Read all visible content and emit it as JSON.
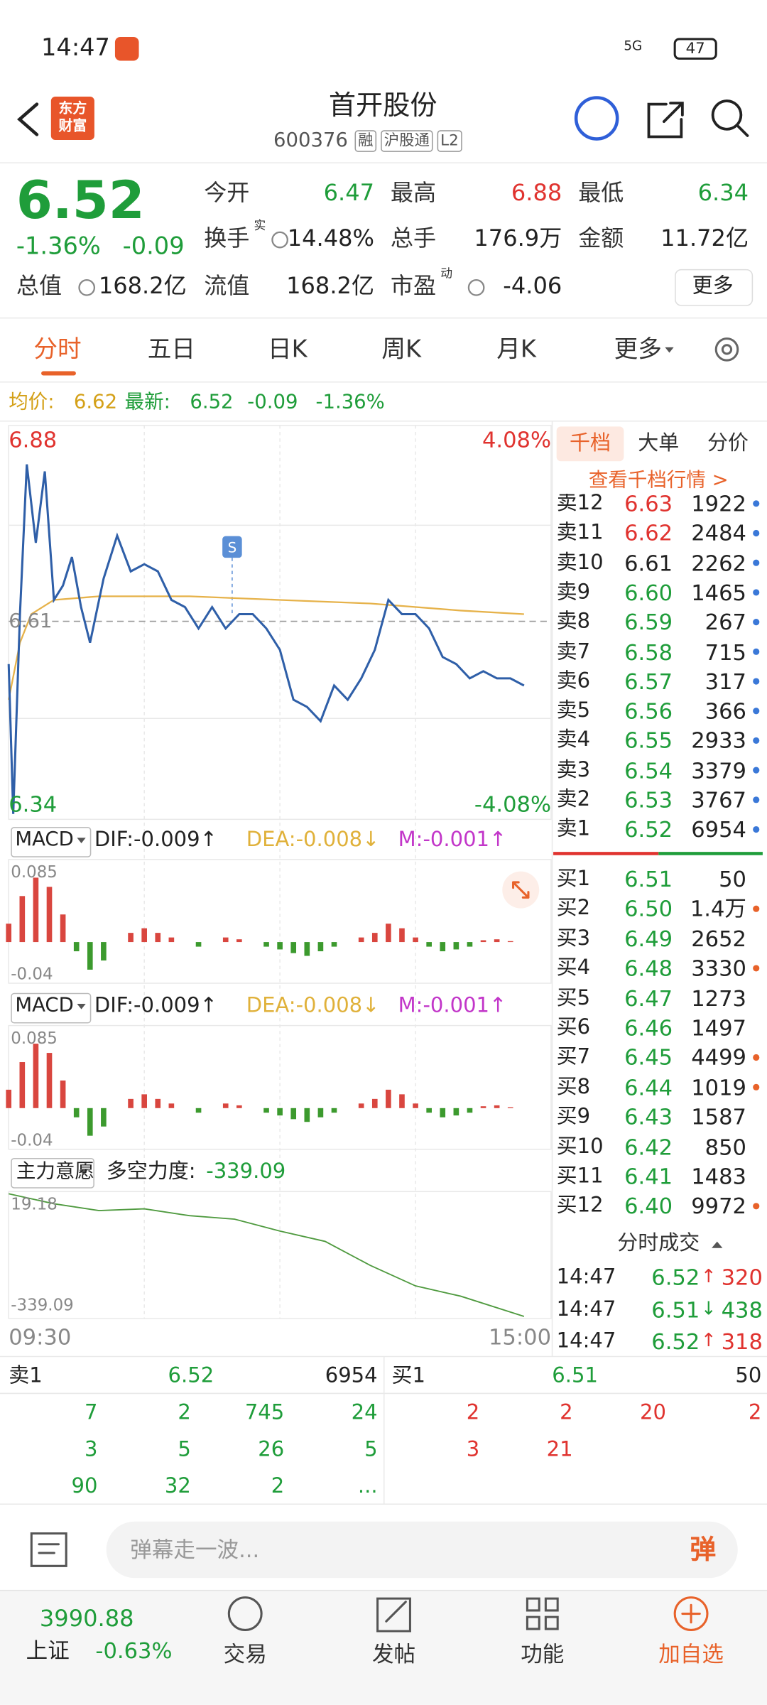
{
  "status_bar": {
    "time": "14:47",
    "network": "5G",
    "battery": "47"
  },
  "header": {
    "logo": "东方财富",
    "title": "首开股份",
    "code": "600376",
    "tags": [
      "融",
      "沪股通",
      "L2"
    ]
  },
  "quote": {
    "price": "6.52",
    "change_pct": "-1.36%",
    "change": "-0.09",
    "stats": [
      {
        "label": "今开",
        "value": "6.47",
        "color": "green"
      },
      {
        "label": "最高",
        "value": "6.88",
        "color": "red"
      },
      {
        "label": "最低",
        "value": "6.34",
        "color": "green"
      },
      {
        "label": "换手",
        "sup": "实",
        "value": "14.48%",
        "color": "black"
      },
      {
        "label": "总手",
        "value": "176.9万",
        "color": "black"
      },
      {
        "label": "金额",
        "value": "11.72亿",
        "color": "black"
      },
      {
        "label": "总值",
        "value": "168.2亿",
        "color": "black"
      },
      {
        "label": "流值",
        "value": "168.2亿",
        "color": "black"
      },
      {
        "label": "市盈",
        "sup": "动",
        "value": "-4.06",
        "color": "black"
      }
    ],
    "more": "更多"
  },
  "tabs": [
    "分时",
    "五日",
    "日K",
    "周K",
    "月K",
    "更多"
  ],
  "summary": {
    "avg_label": "均价:",
    "avg": "6.62",
    "last_label": "最新:",
    "last": "6.52",
    "change": "-0.09",
    "change_pct": "-1.36%"
  },
  "intraday": {
    "type": "line",
    "y_top_label": "6.88",
    "y_mid_label": "6.61",
    "y_bottom_label": "6.34",
    "pct_top": "4.08%",
    "pct_bottom": "-4.08%",
    "x_start": "09:30",
    "x_end": "15:00",
    "xlim": [
      0,
      240
    ],
    "ylim": [
      6.34,
      6.88
    ],
    "reference": 6.61,
    "x": [
      0,
      2,
      5,
      8,
      12,
      16,
      20,
      24,
      28,
      32,
      36,
      42,
      48,
      54,
      60,
      66,
      72,
      78,
      84,
      90,
      96,
      102,
      108,
      114,
      120,
      126,
      132,
      138,
      144,
      150,
      156,
      162,
      168,
      174,
      180,
      186,
      192,
      198,
      204,
      210,
      216,
      222,
      228
    ],
    "values": [
      6.55,
      6.34,
      6.62,
      6.83,
      6.72,
      6.82,
      6.64,
      6.66,
      6.7,
      6.63,
      6.58,
      6.67,
      6.73,
      6.68,
      6.69,
      6.68,
      6.64,
      6.63,
      6.6,
      6.63,
      6.6,
      6.62,
      6.62,
      6.6,
      6.57,
      6.5,
      6.49,
      6.47,
      6.52,
      6.5,
      6.53,
      6.57,
      6.64,
      6.62,
      6.62,
      6.6,
      6.56,
      6.55,
      6.53,
      6.54,
      6.53,
      6.53,
      6.52
    ],
    "color": "#2f5fa8",
    "avg_x": [
      0,
      5,
      10,
      20,
      40,
      80,
      120,
      160,
      200,
      228
    ],
    "avg_values": [
      6.5,
      6.58,
      6.62,
      6.64,
      6.645,
      6.645,
      6.64,
      6.635,
      6.625,
      6.62
    ],
    "avg_color": "#e6b24a"
  },
  "macd_panels": [
    {
      "name": "MACD",
      "dif": "DIF:-0.009↑",
      "dea": "DEA:-0.008↓",
      "m": "M:-0.001↑",
      "top_label": "0.085",
      "bottom_label": "-0.04"
    },
    {
      "name": "MACD",
      "dif": "DIF:-0.009↑",
      "dea": "DEA:-0.008↓",
      "m": "M:-0.001↑",
      "top_label": "0.085",
      "bottom_label": "-0.04"
    }
  ],
  "macd": {
    "type": "bar",
    "xlim": [
      0,
      240
    ],
    "ylim": [
      -0.04,
      0.085
    ],
    "x": [
      0,
      6,
      12,
      18,
      24,
      30,
      36,
      42,
      48,
      54,
      60,
      66,
      72,
      78,
      84,
      90,
      96,
      102,
      108,
      114,
      120,
      126,
      132,
      138,
      144,
      150,
      156,
      162,
      168,
      174,
      180,
      186,
      192,
      198,
      204,
      210,
      216,
      222,
      228
    ],
    "values": [
      0.02,
      0.05,
      0.07,
      0.06,
      0.03,
      -0.01,
      -0.03,
      -0.02,
      0.0,
      0.01,
      0.015,
      0.01,
      0.005,
      0.0,
      -0.005,
      0.0,
      0.005,
      0.003,
      0.0,
      -0.005,
      -0.008,
      -0.012,
      -0.015,
      -0.01,
      -0.005,
      0.0,
      0.005,
      0.01,
      0.02,
      0.015,
      0.005,
      -0.005,
      -0.01,
      -0.008,
      -0.005,
      0.002,
      0.003,
      0.001,
      0.0
    ],
    "up_color": "#d9463f",
    "down_color": "#3c9a2e"
  },
  "flow": {
    "type": "line",
    "name": "主力意愿",
    "label": "多空力度:",
    "value": "-339.09",
    "top_label": "19.18",
    "bottom_label": "-339.09",
    "xlim": [
      0,
      240
    ],
    "ylim": [
      -339.09,
      19.18
    ],
    "x": [
      0,
      20,
      40,
      60,
      80,
      100,
      120,
      140,
      160,
      180,
      200,
      228
    ],
    "values": [
      19.18,
      -10,
      -30,
      -25,
      -45,
      -55,
      -90,
      -120,
      -190,
      -250,
      -280,
      -339.09
    ],
    "color": "#4f9a3f"
  },
  "order_book": {
    "tabs": [
      "千档",
      "大单",
      "分价"
    ],
    "link": "查看千档行情 >",
    "asks": [
      {
        "label": "卖12",
        "price": "6.63",
        "volume": "1922",
        "color": "red",
        "dot": "blue"
      },
      {
        "label": "卖11",
        "price": "6.62",
        "volume": "2484",
        "color": "red",
        "dot": "blue"
      },
      {
        "label": "卖10",
        "price": "6.61",
        "volume": "2262",
        "color": "black",
        "dot": "blue"
      },
      {
        "label": "卖9",
        "price": "6.60",
        "volume": "1465",
        "color": "green",
        "dot": "blue"
      },
      {
        "label": "卖8",
        "price": "6.59",
        "volume": "267",
        "color": "green",
        "dot": "blue"
      },
      {
        "label": "卖7",
        "price": "6.58",
        "volume": "715",
        "color": "green",
        "dot": "blue"
      },
      {
        "label": "卖6",
        "price": "6.57",
        "volume": "317",
        "color": "green",
        "dot": "blue"
      },
      {
        "label": "卖5",
        "price": "6.56",
        "volume": "366",
        "color": "green",
        "dot": "blue"
      },
      {
        "label": "卖4",
        "price": "6.55",
        "volume": "2933",
        "color": "green",
        "dot": "blue"
      },
      {
        "label": "卖3",
        "price": "6.54",
        "volume": "3379",
        "color": "green",
        "dot": "blue"
      },
      {
        "label": "卖2",
        "price": "6.53",
        "volume": "3767",
        "color": "green",
        "dot": "blue"
      },
      {
        "label": "卖1",
        "price": "6.52",
        "volume": "6954",
        "color": "green",
        "dot": "blue"
      }
    ],
    "bids": [
      {
        "label": "买1",
        "price": "6.51",
        "volume": "50",
        "color": "green",
        "dot": null
      },
      {
        "label": "买2",
        "price": "6.50",
        "volume": "1.4万",
        "color": "green",
        "dot": "orange"
      },
      {
        "label": "买3",
        "price": "6.49",
        "volume": "2652",
        "color": "green",
        "dot": null
      },
      {
        "label": "买4",
        "price": "6.48",
        "volume": "3330",
        "color": "green",
        "dot": "orange"
      },
      {
        "label": "买5",
        "price": "6.47",
        "volume": "1273",
        "color": "green",
        "dot": null
      },
      {
        "label": "买6",
        "price": "6.46",
        "volume": "1497",
        "color": "green",
        "dot": null
      },
      {
        "label": "买7",
        "price": "6.45",
        "volume": "4499",
        "color": "green",
        "dot": "orange"
      },
      {
        "label": "买8",
        "price": "6.44",
        "volume": "1019",
        "color": "green",
        "dot": "orange"
      },
      {
        "label": "买9",
        "price": "6.43",
        "volume": "1587",
        "color": "green",
        "dot": null
      },
      {
        "label": "买10",
        "price": "6.42",
        "volume": "850",
        "color": "green",
        "dot": null
      },
      {
        "label": "买11",
        "price": "6.41",
        "volume": "1483",
        "color": "green",
        "dot": null
      },
      {
        "label": "买12",
        "price": "6.40",
        "volume": "9972",
        "color": "green",
        "dot": "orange"
      }
    ],
    "trades_title": "分时成交",
    "trades": [
      {
        "time": "14:47",
        "price": "6.52",
        "arrow": "↑",
        "volume": "320",
        "color": "red"
      },
      {
        "time": "14:47",
        "price": "6.51",
        "arrow": "↓",
        "volume": "438",
        "color": "green"
      },
      {
        "time": "14:47",
        "price": "6.52",
        "arrow": "↑",
        "volume": "318",
        "color": "red"
      }
    ]
  },
  "queue": {
    "sell": {
      "label": "卖1",
      "price": "6.52",
      "volume": "6954",
      "orders": [
        "7",
        "2",
        "745",
        "24",
        "3",
        "5",
        "26",
        "5",
        "90",
        "32",
        "2",
        "..."
      ]
    },
    "buy": {
      "label": "买1",
      "price": "6.51",
      "volume": "50",
      "orders": [
        "2",
        "2",
        "20",
        "2",
        "3",
        "21"
      ]
    }
  },
  "comment_bar": {
    "placeholder": "弹幕走一波...",
    "button": "弹"
  },
  "bottom_nav": {
    "index_value": "3990.88",
    "index_name": "上证",
    "index_change": "-0.63%",
    "items": [
      "交易",
      "发帖",
      "功能",
      "加自选"
    ]
  }
}
